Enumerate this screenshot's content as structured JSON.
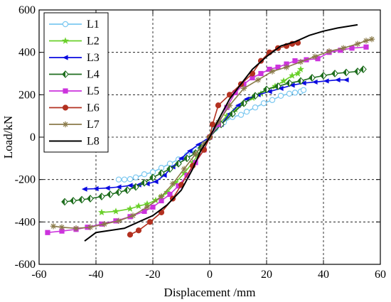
{
  "chart_data": {
    "type": "line",
    "title": "",
    "xlabel": "Displacement /mm",
    "ylabel": "Load/kN",
    "xlim": [
      -60,
      60
    ],
    "ylim": [
      -600,
      600
    ],
    "xticks": [
      "-60",
      "-40",
      "-20",
      "0",
      "20",
      "40",
      "60"
    ],
    "yticks": [
      "600",
      "400",
      "200",
      "0",
      "-200",
      "-400",
      "-600"
    ],
    "grid": true,
    "legend_position": "top-left",
    "series": [
      {
        "name": "L1",
        "color": "#7cc8f0",
        "marker": "circle-open",
        "x": [
          -32,
          -30,
          -28,
          -26,
          -23,
          -20,
          -17,
          -14,
          -11,
          -8,
          -5,
          -2,
          0,
          2,
          5,
          8,
          11,
          13,
          16,
          19,
          22,
          25,
          28,
          30,
          32,
          33
        ],
        "y": [
          -200,
          -200,
          -198,
          -190,
          -175,
          -165,
          -145,
          -125,
          -105,
          -85,
          -60,
          -30,
          0,
          40,
          70,
          95,
          105,
          120,
          140,
          160,
          175,
          195,
          205,
          210,
          215,
          222
        ]
      },
      {
        "name": "L2",
        "color": "#6ad02a",
        "marker": "star",
        "x": [
          -38,
          -33,
          -28,
          -25,
          -22,
          -19,
          -17,
          -15,
          -12,
          -9,
          -6,
          -3,
          0,
          3,
          6,
          9,
          12,
          15,
          18,
          20,
          23,
          26,
          29,
          31,
          32
        ],
        "y": [
          -355,
          -350,
          -338,
          -325,
          -315,
          -298,
          -280,
          -260,
          -215,
          -170,
          -120,
          -60,
          0,
          60,
          100,
          130,
          160,
          185,
          205,
          225,
          240,
          265,
          290,
          300,
          320
        ]
      },
      {
        "name": "L3",
        "color": "#0a0ae0",
        "marker": "triangle-left",
        "x": [
          -44,
          -40,
          -36,
          -32,
          -28,
          -25,
          -22,
          -19,
          -16,
          -13,
          -10,
          -7,
          -4,
          0,
          4,
          7,
          10,
          13,
          17,
          21,
          25,
          29,
          33,
          37,
          41,
          45,
          48
        ],
        "y": [
          -245,
          -243,
          -240,
          -235,
          -228,
          -225,
          -220,
          -210,
          -180,
          -140,
          -100,
          -65,
          -35,
          0,
          60,
          110,
          150,
          180,
          200,
          215,
          230,
          245,
          255,
          260,
          265,
          270,
          270
        ]
      },
      {
        "name": "L4",
        "color": "#1f6e1f",
        "marker": "diamond-half",
        "x": [
          -51,
          -48,
          -45,
          -42,
          -38,
          -35,
          -32,
          -29,
          -26,
          -23,
          -20,
          -17,
          -14,
          -11,
          -8,
          -5,
          -3,
          0,
          4,
          8,
          12,
          16,
          20,
          24,
          28,
          32,
          36,
          40,
          44,
          48,
          52,
          54
        ],
        "y": [
          -305,
          -300,
          -295,
          -290,
          -280,
          -270,
          -260,
          -250,
          -235,
          -215,
          -190,
          -170,
          -150,
          -125,
          -100,
          -75,
          -50,
          0,
          60,
          110,
          160,
          195,
          225,
          240,
          255,
          265,
          280,
          290,
          300,
          305,
          310,
          320
        ]
      },
      {
        "name": "L5",
        "color": "#cc33dd",
        "marker": "square",
        "x": [
          -57,
          -52,
          -47,
          -43,
          -38,
          -33,
          -28,
          -23,
          -20,
          -17,
          -14,
          -11,
          -8,
          -5,
          -2,
          0,
          3,
          6,
          9,
          12,
          15,
          18,
          21,
          24,
          27,
          30,
          34,
          38,
          42,
          46,
          50,
          55
        ],
        "y": [
          -450,
          -443,
          -435,
          -425,
          -410,
          -395,
          -375,
          -350,
          -330,
          -300,
          -270,
          -230,
          -180,
          -120,
          -60,
          0,
          60,
          140,
          210,
          250,
          280,
          300,
          320,
          330,
          345,
          360,
          365,
          370,
          400,
          410,
          420,
          425
        ]
      },
      {
        "name": "L6",
        "color": "#b33120",
        "marker": "circle",
        "x": [
          -28,
          -25,
          -21,
          -17,
          -13,
          -10,
          -6,
          -2,
          0,
          1,
          3,
          7,
          11,
          15,
          18,
          21,
          24,
          27,
          29,
          31
        ],
        "y": [
          -460,
          -440,
          -400,
          -355,
          -290,
          -225,
          -135,
          -60,
          0,
          60,
          150,
          200,
          250,
          300,
          360,
          400,
          420,
          430,
          440,
          445
        ]
      },
      {
        "name": "L7",
        "color": "#8a7a4a",
        "marker": "asterisk",
        "x": [
          -55,
          -52,
          -47,
          -42,
          -37,
          -32,
          -27,
          -22,
          -17,
          -13,
          -9,
          -5,
          -2,
          0,
          3,
          7,
          12,
          17,
          22,
          27,
          32,
          37,
          42,
          47,
          52,
          55,
          57
        ],
        "y": [
          -420,
          -425,
          -430,
          -425,
          -410,
          -395,
          -370,
          -330,
          -280,
          -220,
          -150,
          -80,
          -30,
          0,
          70,
          150,
          230,
          270,
          310,
          330,
          355,
          380,
          405,
          420,
          440,
          455,
          462
        ]
      },
      {
        "name": "L8",
        "color": "#000000",
        "marker": "none",
        "x": [
          -44,
          -40,
          -35,
          -30,
          -25,
          -20,
          -15,
          -10,
          -6,
          -3,
          0,
          3,
          7,
          11,
          15,
          20,
          25,
          30,
          35,
          40,
          45,
          52
        ],
        "y": [
          -490,
          -450,
          -440,
          -430,
          -400,
          -370,
          -320,
          -250,
          -150,
          -60,
          0,
          80,
          180,
          250,
          320,
          380,
          430,
          450,
          480,
          500,
          515,
          530
        ]
      }
    ]
  }
}
